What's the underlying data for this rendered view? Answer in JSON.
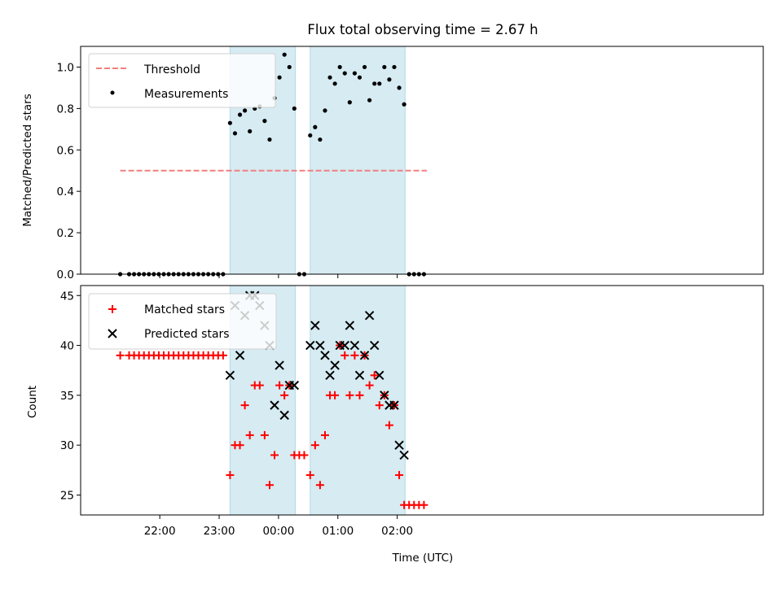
{
  "chart_data": [
    {
      "type": "scatter",
      "title": "Flux total observing time = 2.67 h",
      "xlabel": "",
      "ylabel": "Matched/Predicted stars",
      "ylim": [
        0,
        1.1
      ],
      "yticks": [
        "0.0",
        "0.2",
        "0.4",
        "0.6",
        "0.8",
        "1.0"
      ],
      "ytick_values": [
        0,
        0.2,
        0.4,
        0.6,
        0.8,
        1.0
      ],
      "xlim_minutes": [
        -200,
        490
      ],
      "legend_placement": "top-left",
      "shaded_intervals": [
        {
          "start": "23:11",
          "end": "00:17"
        },
        {
          "start": "00:32",
          "end": "02:08"
        }
      ],
      "series": [
        {
          "name": "Threshold",
          "style": "dashed-line",
          "color": "#f08080",
          "x": [
            "21:20",
            "02:30"
          ],
          "y": [
            0.5,
            0.5
          ]
        },
        {
          "name": "Measurements",
          "style": "dot",
          "color": "#000000",
          "x": [
            "21:20",
            "21:29",
            "21:34",
            "21:39",
            "21:44",
            "21:49",
            "21:54",
            "21:59",
            "22:04",
            "22:09",
            "22:14",
            "22:19",
            "22:24",
            "22:29",
            "22:34",
            "22:39",
            "22:44",
            "22:49",
            "22:54",
            "22:59",
            "23:04",
            "23:11",
            "23:16",
            "23:21",
            "23:26",
            "23:31",
            "23:36",
            "23:41",
            "23:46",
            "23:51",
            "23:56",
            "00:01",
            "00:06",
            "00:11",
            "00:16",
            "00:21",
            "00:26",
            "00:32",
            "00:37",
            "00:42",
            "00:47",
            "00:52",
            "00:57",
            "01:02",
            "01:07",
            "01:12",
            "01:17",
            "01:22",
            "01:27",
            "01:32",
            "01:37",
            "01:42",
            "01:47",
            "01:52",
            "01:57",
            "02:02",
            "02:07",
            "02:12",
            "02:17",
            "02:22",
            "02:27"
          ],
          "y": [
            0,
            0,
            0,
            0,
            0,
            0,
            0,
            0,
            0,
            0,
            0,
            0,
            0,
            0,
            0,
            0,
            0,
            0,
            0,
            0,
            0,
            0.73,
            0.68,
            0.77,
            0.79,
            0.69,
            0.8,
            0.81,
            0.74,
            0.65,
            0.85,
            0.95,
            1.06,
            1.0,
            0.8,
            0,
            0,
            0.67,
            0.71,
            0.65,
            0.79,
            0.95,
            0.92,
            1.0,
            0.97,
            0.83,
            0.97,
            0.95,
            1.0,
            0.84,
            0.92,
            0.92,
            1.0,
            0.94,
            1.0,
            0.9,
            0.82,
            0,
            0,
            0,
            0
          ]
        }
      ]
    },
    {
      "type": "scatter",
      "title": "",
      "xlabel": "Time (UTC)",
      "ylabel": "Count",
      "ylim": [
        23,
        46
      ],
      "yticks": [
        "25",
        "30",
        "35",
        "40",
        "45"
      ],
      "ytick_values": [
        25,
        30,
        35,
        40,
        45
      ],
      "xticks": [
        "22:00",
        "23:00",
        "00:00",
        "01:00",
        "02:00"
      ],
      "xtick_minutes": [
        -120,
        -60,
        0,
        60,
        120
      ],
      "xlim_minutes": [
        -200,
        490
      ],
      "legend_placement": "top-left",
      "shaded_intervals": [
        {
          "start": "23:11",
          "end": "00:17"
        },
        {
          "start": "00:32",
          "end": "02:08"
        }
      ],
      "series": [
        {
          "name": "Matched stars",
          "marker": "plus",
          "color": "#ff0000",
          "x": [
            "21:20",
            "21:29",
            "21:34",
            "21:39",
            "21:44",
            "21:49",
            "21:54",
            "21:59",
            "22:04",
            "22:09",
            "22:14",
            "22:19",
            "22:24",
            "22:29",
            "22:34",
            "22:39",
            "22:44",
            "22:49",
            "22:54",
            "22:59",
            "23:04",
            "23:11",
            "23:16",
            "23:21",
            "23:26",
            "23:31",
            "23:36",
            "23:41",
            "23:46",
            "23:51",
            "23:56",
            "00:01",
            "00:06",
            "00:11",
            "00:16",
            "00:21",
            "00:26",
            "00:32",
            "00:37",
            "00:42",
            "00:47",
            "00:52",
            "00:57",
            "01:02",
            "01:07",
            "01:12",
            "01:17",
            "01:22",
            "01:27",
            "01:32",
            "01:37",
            "01:42",
            "01:47",
            "01:52",
            "01:57",
            "02:02",
            "02:07",
            "02:12",
            "02:17",
            "02:22",
            "02:27"
          ],
          "y": [
            39,
            39,
            39,
            39,
            39,
            39,
            39,
            39,
            39,
            39,
            39,
            39,
            39,
            39,
            39,
            39,
            39,
            39,
            39,
            39,
            39,
            27,
            30,
            30,
            34,
            31,
            36,
            36,
            31,
            26,
            29,
            36,
            35,
            36,
            29,
            29,
            29,
            27,
            30,
            26,
            31,
            35,
            35,
            40,
            39,
            35,
            39,
            35,
            39,
            36,
            37,
            34,
            35,
            32,
            34,
            27,
            24,
            24,
            24,
            24,
            24
          ]
        },
        {
          "name": "Predicted stars",
          "marker": "x",
          "color": "#000000",
          "x": [
            "23:11",
            "23:16",
            "23:21",
            "23:26",
            "23:31",
            "23:36",
            "23:41",
            "23:46",
            "23:51",
            "23:56",
            "00:01",
            "00:06",
            "00:11",
            "00:16",
            "00:32",
            "00:37",
            "00:42",
            "00:47",
            "00:52",
            "00:57",
            "01:02",
            "01:07",
            "01:12",
            "01:17",
            "01:22",
            "01:27",
            "01:32",
            "01:37",
            "01:42",
            "01:47",
            "01:52",
            "01:57",
            "02:02",
            "02:07"
          ],
          "y": [
            37,
            44,
            39,
            43,
            45,
            45,
            44,
            42,
            40,
            34,
            38,
            33,
            36,
            36,
            40,
            42,
            40,
            39,
            37,
            38,
            40,
            40,
            42,
            40,
            37,
            39,
            43,
            40,
            37,
            35,
            34,
            34,
            30,
            29
          ]
        }
      ]
    }
  ]
}
